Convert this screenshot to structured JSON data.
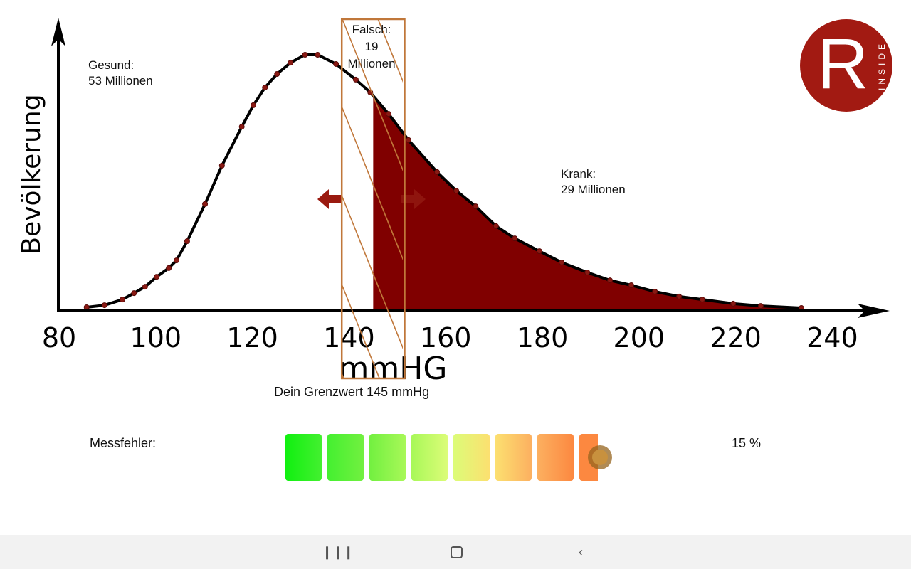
{
  "chart_data": {
    "type": "line",
    "xlabel": "mmHG",
    "ylabel": "Bevölkerung",
    "xlim": [
      80,
      240
    ],
    "ylim": [
      0,
      100
    ],
    "xticks": [
      "80",
      "100",
      "120",
      "140",
      "160",
      "180",
      "200",
      "220",
      "240"
    ],
    "xtick_values": [
      80,
      100,
      120,
      140,
      160,
      180,
      200,
      220,
      240
    ],
    "threshold": 145,
    "error_band": [
      138.5,
      151.5
    ],
    "fill_color": "#800000",
    "band_color": "#c0773a",
    "series": [
      {
        "name": "Bevölkerung",
        "x": [
          85.7,
          89.4,
          93.1,
          95.5,
          97.8,
          100.2,
          102.7,
          104.3,
          106.5,
          110.2,
          113.7,
          117.8,
          120.2,
          122.6,
          125.1,
          127.9,
          130.9,
          133.5,
          137.3,
          141.4,
          144.4,
          148.2,
          152.3,
          158.2,
          162.2,
          166.2,
          170.4,
          174.3,
          179.4,
          184.0,
          189.3,
          194.0,
          198.4,
          203.3,
          208.3,
          213.1,
          219.5,
          225.2,
          233.6
        ],
        "y": [
          1.4,
          2.2,
          4.4,
          6.9,
          9.4,
          13.3,
          16.7,
          19.7,
          27.2,
          41.7,
          56.7,
          71.9,
          80.3,
          87.2,
          92.5,
          96.9,
          100,
          100,
          96.4,
          90.3,
          85.3,
          76.9,
          66.7,
          54.2,
          46.9,
          40.8,
          33.1,
          28.3,
          23.3,
          18.9,
          15.0,
          11.9,
          10.0,
          7.5,
          5.6,
          4.4,
          2.8,
          1.9,
          1.1
        ]
      }
    ]
  },
  "annotations": {
    "gesund_label": "Gesund:",
    "gesund_value": "53 Millionen",
    "falsch_label": "Falsch:",
    "falsch_value": "19",
    "falsch_unit": "Millionen",
    "krank_label": "Krank:",
    "krank_value": "29 Millionen",
    "grenzwert": "Dein Grenzwert 145 mmHg"
  },
  "logo": {
    "letter": "R",
    "text": "INSIDE"
  },
  "messfehler": {
    "label": "Messfehler:",
    "value_text": "15 %",
    "value": 15,
    "segment_colors": [
      "#10f010",
      "#44f030",
      "#72f040",
      "#a8f858",
      "#dcfc78",
      "#fce070",
      "#fcb060",
      "#fc8840"
    ]
  },
  "navbar": {
    "recents": "recents-icon",
    "home": "home-icon",
    "back": "back-icon"
  }
}
